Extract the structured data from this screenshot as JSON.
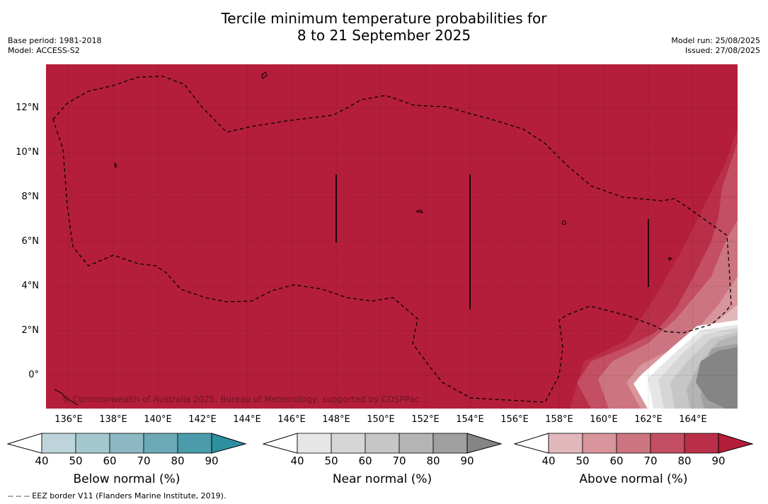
{
  "header": {
    "title_line1": "Tercile minimum temperature probabilities for",
    "title_line2": "8 to 21 September 2025",
    "base_period": "Base period: 1981-2018",
    "model": "Model: ACCESS-S2",
    "model_run": "Model run: 25/08/2025",
    "issued": "Issued: 27/08/2025"
  },
  "map": {
    "latitudes": [
      "12°N",
      "10°N",
      "8°N",
      "6°N",
      "4°N",
      "2°N",
      "0°"
    ],
    "longitudes": [
      "136°E",
      "138°E",
      "140°E",
      "142°E",
      "144°E",
      "146°E",
      "148°E",
      "150°E",
      "152°E",
      "154°E",
      "156°E",
      "158°E",
      "160°E",
      "162°E",
      "164°E"
    ],
    "copyright": "© Commonwealth of Australia 2025, Bureau of Meteorology, supported by COSPPac",
    "colors": {
      "above_90": "#b41e3a",
      "near_high": "#8a8a8a"
    }
  },
  "colorbars": [
    {
      "title": "Below normal (%)",
      "ticks": [
        "40",
        "50",
        "60",
        "70",
        "80",
        "90"
      ],
      "colors": [
        "#bcd4da",
        "#a5c8ce",
        "#8bb8c2",
        "#6ba9b6",
        "#4a9caa",
        "#2e8fa0"
      ]
    },
    {
      "title": "Near normal (%)",
      "ticks": [
        "40",
        "50",
        "60",
        "70",
        "80",
        "90"
      ],
      "colors": [
        "#e6e6e6",
        "#d6d6d6",
        "#c6c6c6",
        "#b4b4b4",
        "#a0a0a0",
        "#858585"
      ]
    },
    {
      "title": "Above normal (%)",
      "ticks": [
        "40",
        "50",
        "60",
        "70",
        "80",
        "90"
      ],
      "colors": [
        "#e2b8bc",
        "#d8959b",
        "#cc7580",
        "#c44e62",
        "#b92f48",
        "#b41e3a"
      ]
    }
  ],
  "footer": "--  --  -- EEZ border V11 (Flanders Marine Institute, 2019)."
}
